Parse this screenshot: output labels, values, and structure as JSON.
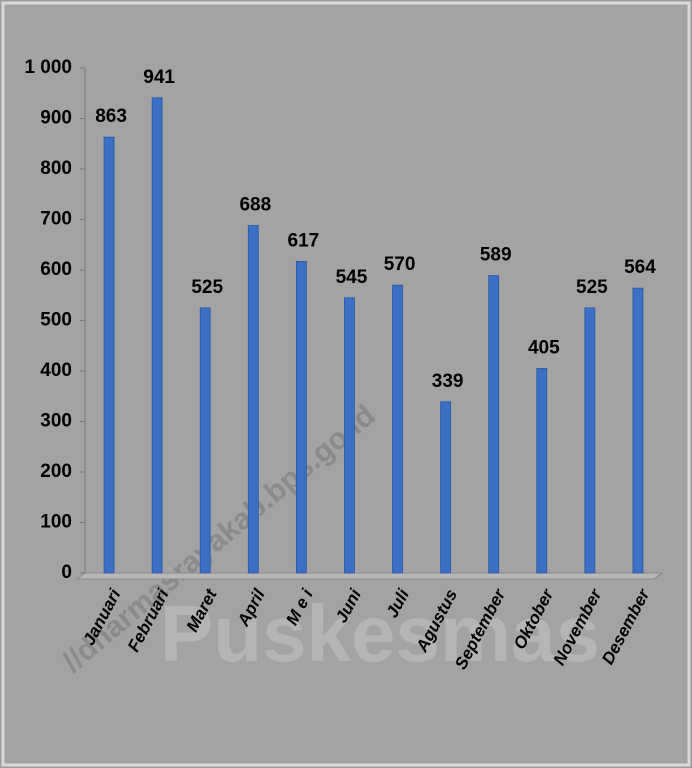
{
  "chart_data": {
    "type": "bar",
    "categories": [
      "Januari",
      "Februari",
      "Maret",
      "April",
      "M e i",
      "Juni",
      "Juli",
      "Agustus",
      "September",
      "Oktober",
      "November",
      "Desember"
    ],
    "values": [
      863,
      941,
      525,
      688,
      617,
      545,
      570,
      339,
      589,
      405,
      525,
      564
    ],
    "color": "#3b70c6",
    "ylim": [
      0,
      1000
    ],
    "yticks": [
      0,
      100,
      200,
      300,
      400,
      500,
      600,
      700,
      800,
      900,
      {
        "value": 1000,
        "label": "1 000"
      }
    ],
    "grid": false,
    "watermark": "//dharmasrayakab.bps.go.id",
    "background_text": "Puskesmas"
  }
}
